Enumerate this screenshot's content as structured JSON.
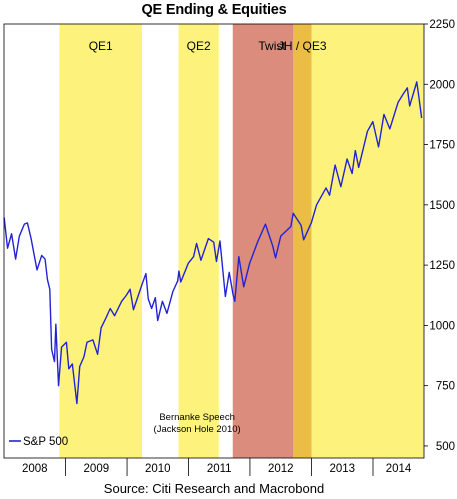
{
  "chart_data": {
    "type": "line",
    "title": "QE Ending & Equities",
    "source": "Source: Citi Research and Macrobond",
    "x_range": [
      "2008-01-01",
      "2014-10-31"
    ],
    "ylim": [
      450,
      2250
    ],
    "yticks": [
      500,
      750,
      1000,
      1250,
      1500,
      1750,
      2000,
      2250
    ],
    "xtick_labels": [
      "2008",
      "2009",
      "2010",
      "2011",
      "2012",
      "2013",
      "2014"
    ],
    "grid": false,
    "legend_position": "bottom-left",
    "shaded_periods": [
      {
        "label": "QE1",
        "start": "2008-11-25",
        "end": "2010-03-31",
        "color": "#fdf37c"
      },
      {
        "label": "QE2",
        "start": "2010-11-03",
        "end": "2011-06-30",
        "color": "#fdf37c"
      },
      {
        "label": "Twist",
        "start": "2011-09-21",
        "end": "2012-12-31",
        "color": "#db8c7c"
      },
      {
        "label": "JH / QE3",
        "start": "2012-09-13",
        "end": "2012-12-31",
        "color": "#ebbd45"
      },
      {
        "label": "",
        "start": "2013-01-01",
        "end": "2014-10-31",
        "color": "#fdf37c"
      }
    ],
    "annotation": {
      "line1": "Bernanke Speech",
      "line2": "(Jackson Hole 2010)",
      "date": "2010-08-27"
    },
    "series": [
      {
        "name": "S&P 500",
        "color": "#2323d6",
        "x": [
          "2008-01-02",
          "2008-01-22",
          "2008-02-15",
          "2008-03-10",
          "2008-04-01",
          "2008-05-01",
          "2008-05-19",
          "2008-06-10",
          "2008-07-15",
          "2008-08-12",
          "2008-09-01",
          "2008-09-15",
          "2008-09-29",
          "2008-10-10",
          "2008-10-27",
          "2008-11-04",
          "2008-11-20",
          "2008-12-08",
          "2009-01-06",
          "2009-01-20",
          "2009-02-10",
          "2009-03-09",
          "2009-03-26",
          "2009-04-20",
          "2009-05-08",
          "2009-06-12",
          "2009-07-10",
          "2009-07-31",
          "2009-08-28",
          "2009-09-23",
          "2009-10-19",
          "2009-11-30",
          "2009-12-28",
          "2010-01-19",
          "2010-02-08",
          "2010-03-31",
          "2010-04-23",
          "2010-05-07",
          "2010-05-27",
          "2010-06-18",
          "2010-07-02",
          "2010-07-30",
          "2010-08-26",
          "2010-09-30",
          "2010-10-29",
          "2010-11-05",
          "2010-11-16",
          "2010-12-31",
          "2011-01-31",
          "2011-02-18",
          "2011-03-16",
          "2011-04-29",
          "2011-05-31",
          "2011-06-16",
          "2011-07-07",
          "2011-08-08",
          "2011-08-31",
          "2011-09-22",
          "2011-10-03",
          "2011-10-27",
          "2011-11-25",
          "2011-12-30",
          "2012-02-15",
          "2012-04-02",
          "2012-05-15",
          "2012-06-01",
          "2012-07-02",
          "2012-08-31",
          "2012-09-14",
          "2012-10-31",
          "2012-11-15",
          "2012-12-31",
          "2013-01-31",
          "2013-03-28",
          "2013-04-18",
          "2013-05-21",
          "2013-06-24",
          "2013-07-31",
          "2013-08-30",
          "2013-09-18",
          "2013-10-08",
          "2013-11-29",
          "2013-12-31",
          "2014-02-03",
          "2014-03-07",
          "2014-04-11",
          "2014-05-30",
          "2014-06-30",
          "2014-07-24",
          "2014-08-07",
          "2014-09-18",
          "2014-10-01",
          "2014-10-15",
          "2014-10-17"
        ],
        "y": [
          1447,
          1320,
          1380,
          1275,
          1370,
          1420,
          1425,
          1360,
          1230,
          1290,
          1275,
          1190,
          1150,
          900,
          850,
          1005,
          750,
          910,
          930,
          820,
          840,
          676,
          830,
          870,
          930,
          940,
          880,
          990,
          1030,
          1070,
          1040,
          1100,
          1125,
          1150,
          1065,
          1170,
          1215,
          1110,
          1070,
          1115,
          1020,
          1100,
          1050,
          1140,
          1185,
          1225,
          1180,
          1258,
          1285,
          1340,
          1270,
          1360,
          1345,
          1265,
          1350,
          1120,
          1220,
          1130,
          1100,
          1285,
          1160,
          1257,
          1345,
          1420,
          1330,
          1280,
          1370,
          1410,
          1465,
          1415,
          1355,
          1426,
          1500,
          1570,
          1540,
          1665,
          1575,
          1690,
          1630,
          1725,
          1655,
          1805,
          1845,
          1740,
          1875,
          1815,
          1925,
          1960,
          1985,
          1910,
          2010,
          1945,
          1870,
          1860
        ]
      }
    ]
  }
}
